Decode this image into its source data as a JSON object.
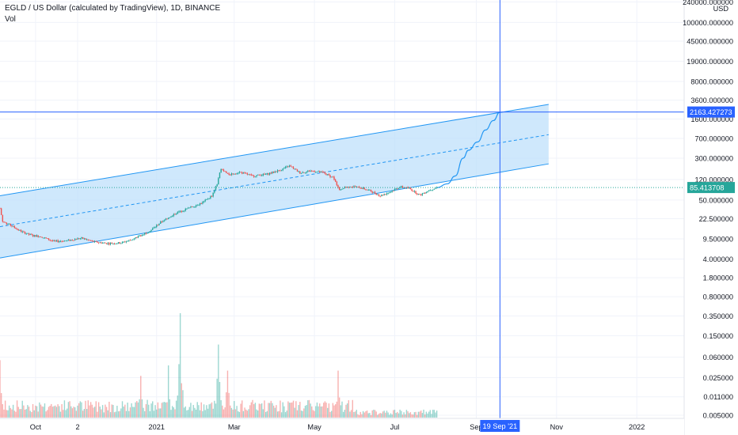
{
  "header": {
    "title": "EGLD / US Dollar (calculated by TradingView), 1D, BINANCE",
    "indicator": "Vol"
  },
  "colors": {
    "up": "#26a69a",
    "down": "#ef5350",
    "channel_line": "#2196f3",
    "channel_fill": "#bbdefb",
    "crosshair": "#2962ff",
    "price_tag": "#26a69a",
    "grid": "#f0f3fa"
  },
  "chart_data": {
    "type": "candlestick",
    "y_scale": "log",
    "y_unit": "USD",
    "y_tick_labels": [
      "240000.000000",
      "100000.000000",
      "45000.000000",
      "19000.000000",
      "8000.000000",
      "3600.000000",
      "1600.000000",
      "700.000000",
      "300.000000",
      "120.000000",
      "50.000000",
      "22.500000",
      "9.500000",
      "4.000000",
      "1.800000",
      "0.800000",
      "0.350000",
      "0.150000",
      "0.060000",
      "0.025000",
      "0.011000",
      "0.005000"
    ],
    "y_ticks": [
      240000,
      100000,
      45000,
      19000,
      8000,
      3600,
      1600,
      700,
      300,
      120,
      50,
      22.5,
      9.5,
      4,
      1.8,
      0.8,
      0.35,
      0.15,
      0.06,
      0.025,
      0.011,
      0.005
    ],
    "x_tick_labels": [
      "Oct",
      "2",
      "2021",
      "Mar",
      "May",
      "Jul",
      "Sep",
      "Nov",
      "2022"
    ],
    "x_ticks": [
      "2020-10-01",
      "2020-11-02",
      "2021-01-01",
      "2021-03-01",
      "2021-05-01",
      "2021-07-01",
      "2021-09-01",
      "2021-11-01",
      "2022-01-01"
    ],
    "x_range": [
      "2020-09-04",
      "2022-02-06"
    ],
    "last_price": "85.413708",
    "crosshair_price": "2163.427273",
    "crosshair_date": "19 Sep '21",
    "crosshair_value": 2163.427273,
    "crosshair_x": "2021-09-19",
    "price_path": [
      [
        "2020-09-04",
        35
      ],
      [
        "2020-09-06",
        20
      ],
      [
        "2020-09-12",
        17
      ],
      [
        "2020-09-20",
        13
      ],
      [
        "2020-09-28",
        11
      ],
      [
        "2020-10-05",
        10.5
      ],
      [
        "2020-10-15",
        8.5
      ],
      [
        "2020-10-25",
        8.8
      ],
      [
        "2020-11-05",
        9.8
      ],
      [
        "2020-11-15",
        8.3
      ],
      [
        "2020-11-25",
        7.8
      ],
      [
        "2020-12-05",
        8
      ],
      [
        "2020-12-12",
        9
      ],
      [
        "2020-12-20",
        11
      ],
      [
        "2020-12-28",
        14
      ],
      [
        "2021-01-05",
        20
      ],
      [
        "2021-01-15",
        28
      ],
      [
        "2021-01-25",
        35
      ],
      [
        "2021-02-05",
        45
      ],
      [
        "2021-02-12",
        60
      ],
      [
        "2021-02-16",
        100
      ],
      [
        "2021-02-19",
        195
      ],
      [
        "2021-02-25",
        150
      ],
      [
        "2021-03-05",
        165
      ],
      [
        "2021-03-15",
        140
      ],
      [
        "2021-03-25",
        150
      ],
      [
        "2021-04-05",
        180
      ],
      [
        "2021-04-12",
        215
      ],
      [
        "2021-04-20",
        160
      ],
      [
        "2021-04-28",
        175
      ],
      [
        "2021-05-08",
        160
      ],
      [
        "2021-05-15",
        130
      ],
      [
        "2021-05-20",
        80
      ],
      [
        "2021-05-28",
        90
      ],
      [
        "2021-06-05",
        85
      ],
      [
        "2021-06-12",
        75
      ],
      [
        "2021-06-20",
        60
      ],
      [
        "2021-06-28",
        72
      ],
      [
        "2021-07-05",
        88
      ],
      [
        "2021-07-12",
        82
      ],
      [
        "2021-07-20",
        62
      ],
      [
        "2021-07-28",
        78
      ],
      [
        "2021-08-02",
        85
      ]
    ],
    "projection_path": [
      [
        "2021-08-02",
        85
      ],
      [
        "2021-08-10",
        100
      ],
      [
        "2021-08-16",
        140
      ],
      [
        "2021-08-22",
        300
      ],
      [
        "2021-08-26",
        420
      ],
      [
        "2021-09-02",
        600
      ],
      [
        "2021-09-08",
        1000
      ],
      [
        "2021-09-14",
        1500
      ],
      [
        "2021-09-19",
        2163
      ]
    ],
    "channel": {
      "upper": [
        [
          "2020-09-04",
          60
        ],
        [
          "2021-10-26",
          3000
        ]
      ],
      "middle": [
        [
          "2020-09-04",
          16
        ],
        [
          "2021-10-26",
          820
        ]
      ],
      "lower": [
        [
          "2020-09-04",
          4.2
        ],
        [
          "2021-10-26",
          235
        ]
      ]
    },
    "volume_series": "relative daily trading volume (0-1)",
    "volume_peaks": [
      [
        "2020-09-04",
        0.55
      ],
      [
        "2020-12-20",
        0.4
      ],
      [
        "2021-01-10",
        0.5
      ],
      [
        "2021-01-19",
        1.0
      ],
      [
        "2021-02-17",
        0.7
      ],
      [
        "2021-02-24",
        0.45
      ],
      [
        "2021-05-19",
        0.45
      ]
    ]
  }
}
